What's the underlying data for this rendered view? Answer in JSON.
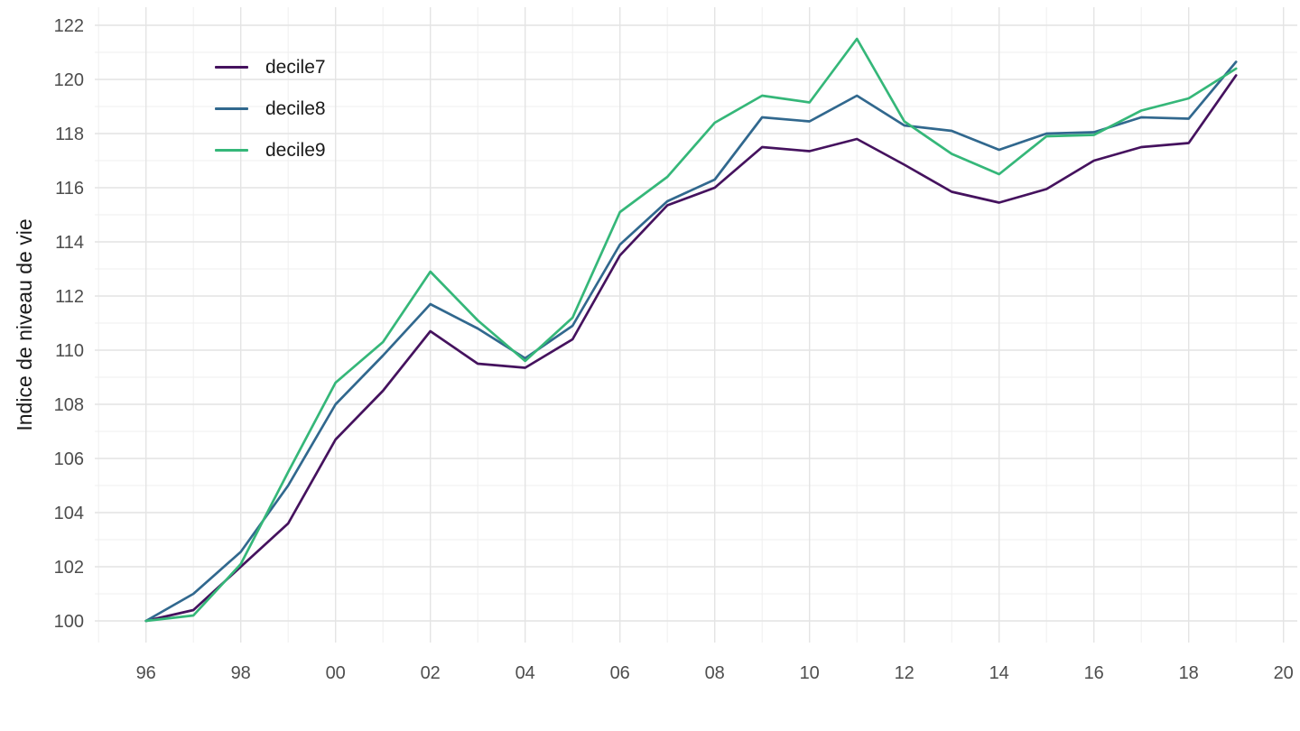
{
  "chart_data": {
    "type": "line",
    "title": "",
    "xlabel": "",
    "ylabel": "Indice de niveau de vie",
    "grid": true,
    "legend_position": "top-left-inside",
    "xlim": [
      1994.9,
      2020.3
    ],
    "ylim": [
      99.5,
      123
    ],
    "x": [
      1996,
      1997,
      1998,
      1999,
      2000,
      2001,
      2002,
      2003,
      2004,
      2005,
      2006,
      2007,
      2008,
      2009,
      2010,
      2011,
      2012,
      2013,
      2014,
      2015,
      2016,
      2017,
      2018,
      2019
    ],
    "x_ticks": {
      "years": [
        1996,
        1998,
        2000,
        2002,
        2004,
        2006,
        2008,
        2010,
        2012,
        2014,
        2016,
        2018,
        2020
      ],
      "labels": [
        "96",
        "98",
        "00",
        "02",
        "04",
        "06",
        "08",
        "10",
        "12",
        "14",
        "16",
        "18",
        "20"
      ]
    },
    "y_ticks": [
      100,
      102,
      104,
      106,
      108,
      110,
      112,
      114,
      116,
      118,
      120,
      122
    ],
    "series": [
      {
        "name": "decile7",
        "color": "#45125e",
        "values": [
          100,
          100.4,
          102.0,
          103.6,
          106.7,
          108.5,
          110.7,
          109.5,
          109.35,
          110.4,
          113.5,
          115.35,
          116.0,
          117.5,
          117.35,
          117.8,
          116.85,
          115.85,
          115.45,
          115.95,
          117.0,
          117.5,
          117.65,
          120.15
        ]
      },
      {
        "name": "decile8",
        "color": "#31688e",
        "values": [
          100,
          101.0,
          102.55,
          105.0,
          108.0,
          109.8,
          111.7,
          110.8,
          109.7,
          110.9,
          113.9,
          115.5,
          116.3,
          118.6,
          118.45,
          119.4,
          118.3,
          118.1,
          117.4,
          118.0,
          118.05,
          118.6,
          118.55,
          120.65
        ]
      },
      {
        "name": "decile9",
        "color": "#35b779",
        "values": [
          100,
          100.2,
          102.1,
          105.5,
          108.8,
          110.3,
          112.9,
          111.1,
          109.6,
          111.2,
          115.1,
          116.4,
          118.4,
          119.4,
          119.15,
          121.5,
          118.45,
          117.25,
          116.5,
          117.9,
          117.95,
          118.85,
          119.3,
          120.4
        ]
      }
    ],
    "grid_color_major": "#e4e4e4",
    "grid_color_minor": "#efefef"
  }
}
